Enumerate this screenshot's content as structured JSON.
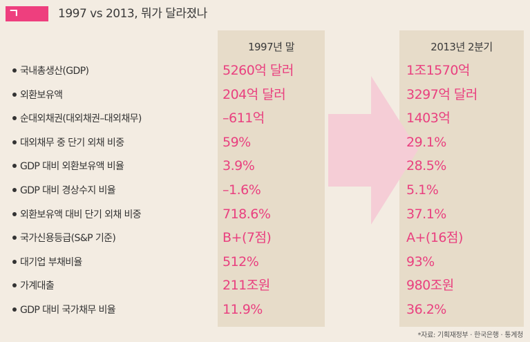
{
  "header": {
    "badge_mark": "ㄱ",
    "title": "1997 vs 2013, 뭐가 달라졌나"
  },
  "colors": {
    "accent": "#ee3f7e",
    "value_text": "#e9407f",
    "column_bg": "#e7dcc9",
    "arrow": "#f5cdd6"
  },
  "chart_data": {
    "type": "table",
    "columns": [
      "1997년 말",
      "2013년 2분기"
    ],
    "rows": [
      {
        "label": "국내총생산(GDP)",
        "v1997": "5260억 달러",
        "v2013": "1조1570억"
      },
      {
        "label": "외환보유액",
        "v1997": "204억 달러",
        "v2013": "3297억 달러"
      },
      {
        "label": "순대외채권(대외채권–대외채무)",
        "v1997": "–611억",
        "v2013": "1403억"
      },
      {
        "label": "대외채무 중 단기 외채 비중",
        "v1997": "59%",
        "v2013": "29.1%"
      },
      {
        "label": "GDP 대비 외환보유액 비율",
        "v1997": "3.9%",
        "v2013": "28.5%"
      },
      {
        "label": "GDP 대비 경상수지 비율",
        "v1997": "–1.6%",
        "v2013": "5.1%"
      },
      {
        "label": "외환보유액 대비 단기 외채 비중",
        "v1997": "718.6%",
        "v2013": "37.1%"
      },
      {
        "label": "국가신용등급(S&P 기준)",
        "v1997": "B+(7점)",
        "v2013": "A+(16점)"
      },
      {
        "label": "대기업 부채비율",
        "v1997": "512%",
        "v2013": "93%"
      },
      {
        "label": "가계대출",
        "v1997": "211조원",
        "v2013": "980조원"
      },
      {
        "label": "GDP 대비 국가채무 비율",
        "v1997": "11.9%",
        "v2013": "36.2%"
      }
    ]
  },
  "source": "*자료: 기획재정부 · 한국은행 · 통계청"
}
